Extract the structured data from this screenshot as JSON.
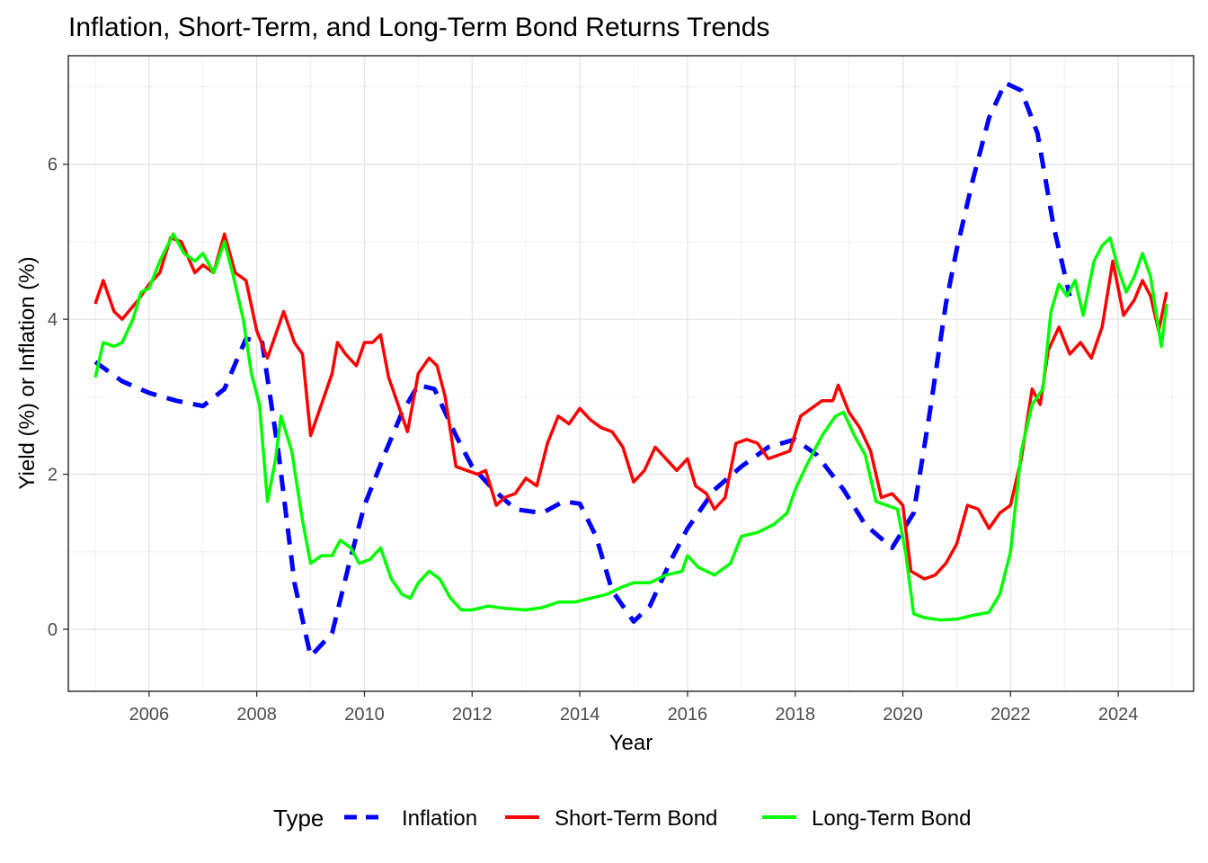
{
  "chart_data": {
    "type": "line",
    "title": "Inflation, Short-Term, and Long-Term Bond Returns Trends",
    "xlabel": "Year",
    "ylabel": "Yield (%) or Inflation (%)",
    "xlim": [
      2004.5,
      2025.4
    ],
    "ylim": [
      -0.8,
      7.4
    ],
    "x_ticks": [
      2006,
      2008,
      2010,
      2012,
      2014,
      2016,
      2018,
      2020,
      2022,
      2024
    ],
    "x_tick_labels": [
      "2006",
      "2008",
      "2010",
      "2012",
      "2014",
      "2016",
      "2018",
      "2020",
      "2022",
      "2024"
    ],
    "y_ticks": [
      0,
      2,
      4,
      6
    ],
    "y_tick_labels": [
      "0",
      "2",
      "4",
      "6"
    ],
    "grid": true,
    "legend": {
      "title": "Type",
      "position": "bottom"
    },
    "series": [
      {
        "name": "Inflation",
        "color": "#0000FF",
        "style": "dashed",
        "points": [
          [
            2005.0,
            3.45
          ],
          [
            2005.5,
            3.2
          ],
          [
            2006.0,
            3.05
          ],
          [
            2006.5,
            2.95
          ],
          [
            2007.0,
            2.88
          ],
          [
            2007.4,
            3.1
          ],
          [
            2007.8,
            3.75
          ],
          [
            2008.1,
            3.7
          ],
          [
            2008.4,
            2.3
          ],
          [
            2008.7,
            0.6
          ],
          [
            2009.0,
            -0.35
          ],
          [
            2009.4,
            -0.05
          ],
          [
            2009.7,
            0.8
          ],
          [
            2010.0,
            1.6
          ],
          [
            2010.4,
            2.3
          ],
          [
            2010.7,
            2.8
          ],
          [
            2011.0,
            3.15
          ],
          [
            2011.3,
            3.1
          ],
          [
            2011.7,
            2.5
          ],
          [
            2012.0,
            2.1
          ],
          [
            2012.4,
            1.8
          ],
          [
            2012.8,
            1.55
          ],
          [
            2013.3,
            1.5
          ],
          [
            2013.7,
            1.65
          ],
          [
            2014.0,
            1.62
          ],
          [
            2014.3,
            1.2
          ],
          [
            2014.6,
            0.5
          ],
          [
            2015.0,
            0.1
          ],
          [
            2015.3,
            0.3
          ],
          [
            2015.7,
            0.9
          ],
          [
            2016.0,
            1.3
          ],
          [
            2016.5,
            1.8
          ],
          [
            2017.0,
            2.1
          ],
          [
            2017.5,
            2.35
          ],
          [
            2018.0,
            2.45
          ],
          [
            2018.4,
            2.25
          ],
          [
            2018.9,
            1.8
          ],
          [
            2019.3,
            1.35
          ],
          [
            2019.8,
            1.05
          ],
          [
            2020.2,
            1.5
          ],
          [
            2020.5,
            2.8
          ],
          [
            2020.8,
            4.2
          ],
          [
            2021.0,
            4.9
          ],
          [
            2021.3,
            5.8
          ],
          [
            2021.6,
            6.6
          ],
          [
            2021.9,
            7.05
          ],
          [
            2022.2,
            6.95
          ],
          [
            2022.5,
            6.4
          ],
          [
            2022.8,
            5.2
          ],
          [
            2023.1,
            4.3
          ]
        ]
      },
      {
        "name": "Short-Term Bond",
        "color": "#FF0000",
        "style": "solid",
        "points": [
          [
            2005.0,
            4.2
          ],
          [
            2005.15,
            4.5
          ],
          [
            2005.35,
            4.1
          ],
          [
            2005.5,
            4.0
          ],
          [
            2005.8,
            4.25
          ],
          [
            2006.0,
            4.45
          ],
          [
            2006.2,
            4.6
          ],
          [
            2006.4,
            5.05
          ],
          [
            2006.6,
            5.0
          ],
          [
            2006.85,
            4.6
          ],
          [
            2007.0,
            4.7
          ],
          [
            2007.2,
            4.6
          ],
          [
            2007.4,
            5.1
          ],
          [
            2007.6,
            4.6
          ],
          [
            2007.8,
            4.5
          ],
          [
            2008.0,
            3.85
          ],
          [
            2008.2,
            3.5
          ],
          [
            2008.4,
            3.9
          ],
          [
            2008.5,
            4.1
          ],
          [
            2008.7,
            3.7
          ],
          [
            2008.85,
            3.55
          ],
          [
            2009.0,
            2.5
          ],
          [
            2009.2,
            2.9
          ],
          [
            2009.4,
            3.3
          ],
          [
            2009.5,
            3.7
          ],
          [
            2009.65,
            3.55
          ],
          [
            2009.85,
            3.4
          ],
          [
            2010.0,
            3.7
          ],
          [
            2010.15,
            3.7
          ],
          [
            2010.3,
            3.8
          ],
          [
            2010.45,
            3.25
          ],
          [
            2010.6,
            2.95
          ],
          [
            2010.8,
            2.55
          ],
          [
            2011.0,
            3.3
          ],
          [
            2011.2,
            3.5
          ],
          [
            2011.35,
            3.4
          ],
          [
            2011.5,
            3.0
          ],
          [
            2011.7,
            2.1
          ],
          [
            2011.9,
            2.05
          ],
          [
            2012.1,
            2.0
          ],
          [
            2012.25,
            2.05
          ],
          [
            2012.45,
            1.6
          ],
          [
            2012.6,
            1.7
          ],
          [
            2012.8,
            1.75
          ],
          [
            2013.0,
            1.95
          ],
          [
            2013.2,
            1.85
          ],
          [
            2013.4,
            2.4
          ],
          [
            2013.6,
            2.75
          ],
          [
            2013.8,
            2.65
          ],
          [
            2014.0,
            2.85
          ],
          [
            2014.2,
            2.7
          ],
          [
            2014.4,
            2.6
          ],
          [
            2014.6,
            2.55
          ],
          [
            2014.8,
            2.35
          ],
          [
            2015.0,
            1.9
          ],
          [
            2015.2,
            2.05
          ],
          [
            2015.4,
            2.35
          ],
          [
            2015.6,
            2.2
          ],
          [
            2015.8,
            2.05
          ],
          [
            2016.0,
            2.2
          ],
          [
            2016.15,
            1.85
          ],
          [
            2016.35,
            1.75
          ],
          [
            2016.5,
            1.55
          ],
          [
            2016.7,
            1.7
          ],
          [
            2016.9,
            2.4
          ],
          [
            2017.1,
            2.45
          ],
          [
            2017.3,
            2.4
          ],
          [
            2017.5,
            2.2
          ],
          [
            2017.7,
            2.25
          ],
          [
            2017.9,
            2.3
          ],
          [
            2018.1,
            2.75
          ],
          [
            2018.3,
            2.85
          ],
          [
            2018.5,
            2.95
          ],
          [
            2018.7,
            2.95
          ],
          [
            2018.8,
            3.15
          ],
          [
            2019.0,
            2.8
          ],
          [
            2019.2,
            2.6
          ],
          [
            2019.4,
            2.3
          ],
          [
            2019.6,
            1.7
          ],
          [
            2019.8,
            1.75
          ],
          [
            2020.0,
            1.6
          ],
          [
            2020.15,
            0.75
          ],
          [
            2020.4,
            0.65
          ],
          [
            2020.6,
            0.7
          ],
          [
            2020.8,
            0.85
          ],
          [
            2021.0,
            1.1
          ],
          [
            2021.2,
            1.6
          ],
          [
            2021.4,
            1.55
          ],
          [
            2021.6,
            1.3
          ],
          [
            2021.8,
            1.5
          ],
          [
            2022.0,
            1.6
          ],
          [
            2022.2,
            2.2
          ],
          [
            2022.4,
            3.1
          ],
          [
            2022.55,
            2.9
          ],
          [
            2022.7,
            3.6
          ],
          [
            2022.9,
            3.9
          ],
          [
            2023.1,
            3.55
          ],
          [
            2023.3,
            3.7
          ],
          [
            2023.5,
            3.5
          ],
          [
            2023.7,
            3.9
          ],
          [
            2023.9,
            4.75
          ],
          [
            2024.1,
            4.05
          ],
          [
            2024.3,
            4.25
          ],
          [
            2024.45,
            4.5
          ],
          [
            2024.6,
            4.3
          ],
          [
            2024.75,
            3.85
          ],
          [
            2024.9,
            4.35
          ]
        ]
      },
      {
        "name": "Long-Term Bond",
        "color": "#00FF00",
        "style": "solid",
        "points": [
          [
            2005.0,
            3.25
          ],
          [
            2005.15,
            3.7
          ],
          [
            2005.35,
            3.65
          ],
          [
            2005.5,
            3.7
          ],
          [
            2005.7,
            4.0
          ],
          [
            2005.85,
            4.35
          ],
          [
            2006.0,
            4.4
          ],
          [
            2006.2,
            4.75
          ],
          [
            2006.45,
            5.1
          ],
          [
            2006.65,
            4.85
          ],
          [
            2006.85,
            4.75
          ],
          [
            2007.0,
            4.85
          ],
          [
            2007.2,
            4.6
          ],
          [
            2007.4,
            5.0
          ],
          [
            2007.55,
            4.6
          ],
          [
            2007.75,
            4.0
          ],
          [
            2007.9,
            3.3
          ],
          [
            2008.05,
            2.9
          ],
          [
            2008.2,
            1.65
          ],
          [
            2008.35,
            2.2
          ],
          [
            2008.45,
            2.75
          ],
          [
            2008.65,
            2.3
          ],
          [
            2008.85,
            1.4
          ],
          [
            2009.0,
            0.85
          ],
          [
            2009.2,
            0.95
          ],
          [
            2009.4,
            0.95
          ],
          [
            2009.55,
            1.15
          ],
          [
            2009.75,
            1.05
          ],
          [
            2009.9,
            0.85
          ],
          [
            2010.1,
            0.9
          ],
          [
            2010.3,
            1.05
          ],
          [
            2010.5,
            0.65
          ],
          [
            2010.7,
            0.45
          ],
          [
            2010.85,
            0.4
          ],
          [
            2011.0,
            0.6
          ],
          [
            2011.2,
            0.75
          ],
          [
            2011.4,
            0.65
          ],
          [
            2011.6,
            0.4
          ],
          [
            2011.8,
            0.25
          ],
          [
            2012.0,
            0.25
          ],
          [
            2012.3,
            0.3
          ],
          [
            2012.6,
            0.27
          ],
          [
            2013.0,
            0.25
          ],
          [
            2013.3,
            0.28
          ],
          [
            2013.6,
            0.35
          ],
          [
            2013.9,
            0.35
          ],
          [
            2014.2,
            0.4
          ],
          [
            2014.5,
            0.45
          ],
          [
            2014.8,
            0.55
          ],
          [
            2015.0,
            0.6
          ],
          [
            2015.3,
            0.6
          ],
          [
            2015.6,
            0.7
          ],
          [
            2015.9,
            0.75
          ],
          [
            2016.0,
            0.95
          ],
          [
            2016.2,
            0.8
          ],
          [
            2016.5,
            0.7
          ],
          [
            2016.8,
            0.85
          ],
          [
            2017.0,
            1.2
          ],
          [
            2017.3,
            1.25
          ],
          [
            2017.6,
            1.35
          ],
          [
            2017.85,
            1.5
          ],
          [
            2018.0,
            1.8
          ],
          [
            2018.2,
            2.1
          ],
          [
            2018.5,
            2.5
          ],
          [
            2018.75,
            2.75
          ],
          [
            2018.9,
            2.8
          ],
          [
            2019.1,
            2.5
          ],
          [
            2019.3,
            2.25
          ],
          [
            2019.5,
            1.65
          ],
          [
            2019.7,
            1.6
          ],
          [
            2019.9,
            1.55
          ],
          [
            2020.05,
            1.0
          ],
          [
            2020.2,
            0.2
          ],
          [
            2020.4,
            0.15
          ],
          [
            2020.7,
            0.12
          ],
          [
            2021.0,
            0.13
          ],
          [
            2021.3,
            0.18
          ],
          [
            2021.6,
            0.22
          ],
          [
            2021.8,
            0.45
          ],
          [
            2022.0,
            1.0
          ],
          [
            2022.2,
            2.3
          ],
          [
            2022.4,
            2.9
          ],
          [
            2022.6,
            3.1
          ],
          [
            2022.75,
            4.1
          ],
          [
            2022.9,
            4.45
          ],
          [
            2023.05,
            4.3
          ],
          [
            2023.2,
            4.5
          ],
          [
            2023.35,
            4.05
          ],
          [
            2023.55,
            4.75
          ],
          [
            2023.7,
            4.95
          ],
          [
            2023.85,
            5.05
          ],
          [
            2024.0,
            4.65
          ],
          [
            2024.15,
            4.35
          ],
          [
            2024.3,
            4.55
          ],
          [
            2024.45,
            4.85
          ],
          [
            2024.6,
            4.55
          ],
          [
            2024.72,
            4.0
          ],
          [
            2024.8,
            3.65
          ],
          [
            2024.9,
            4.2
          ]
        ]
      }
    ]
  }
}
